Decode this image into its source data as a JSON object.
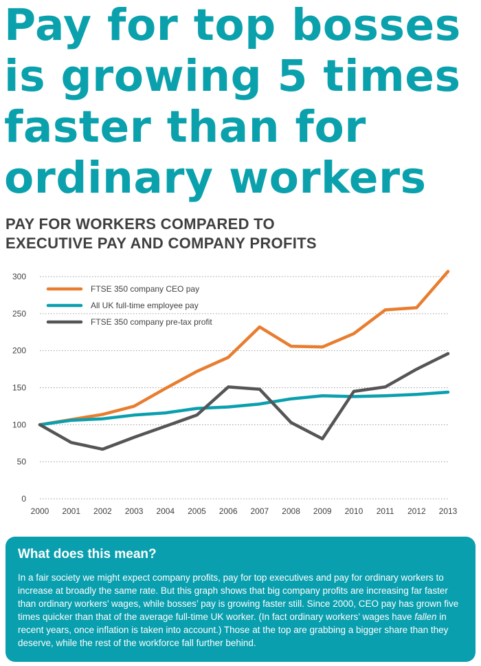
{
  "headline": {
    "lines": [
      "Pay for top bosses",
      "is growing 5 times",
      "faster than for",
      "ordinary workers"
    ]
  },
  "subtitle": {
    "lines": [
      "PAY FOR WORKERS COMPARED TO",
      "EXECUTIVE PAY AND COMPANY PROFITS"
    ]
  },
  "colors": {
    "accent": "#0aa1ad",
    "ceo_pay": "#e87d2f",
    "employee_pay": "#0a9fae",
    "profit": "#555557",
    "grid": "#9a9a9a",
    "text": "#3f3f3f"
  },
  "chart_data": {
    "type": "line",
    "title": "PAY FOR WORKERS COMPARED TO EXECUTIVE PAY AND COMPANY PROFITS",
    "xlabel": "",
    "ylabel": "",
    "x": [
      2000,
      2001,
      2002,
      2003,
      2004,
      2005,
      2006,
      2007,
      2008,
      2009,
      2010,
      2011,
      2012,
      2013
    ],
    "ylim": [
      0,
      300
    ],
    "yticks": [
      0,
      50,
      100,
      150,
      200,
      250,
      300
    ],
    "grid": "horizontal dotted",
    "legend_position": "top-left",
    "series": [
      {
        "name": "FTSE 350 company CEO pay",
        "color": "#e87d2f",
        "values": [
          100,
          107,
          114,
          125,
          149,
          172,
          191,
          232,
          206,
          205,
          223,
          255,
          258,
          307
        ]
      },
      {
        "name": "All UK full-time employee pay",
        "color": "#0a9fae",
        "values": [
          100,
          106,
          108,
          113,
          116,
          122,
          124,
          128,
          135,
          139,
          138,
          139,
          141,
          144
        ]
      },
      {
        "name": "FTSE 350 company pre-tax profit",
        "color": "#555557",
        "values": [
          100,
          76,
          67,
          83,
          98,
          113,
          151,
          148,
          103,
          81,
          145,
          151,
          175,
          196
        ]
      }
    ]
  },
  "infobox": {
    "title": "What does this mean?",
    "body_before": "In a fair society we might expect company profits, pay for top executives and pay for ordinary workers to increase at broadly the same rate. But this graph shows that big company profits are increasing far faster than ordinary workers’ wages, while bosses’ pay is growing faster still. Since 2000, CEO pay has grown five times quicker than that of the average full-time UK worker. (In fact ordinary workers’ wages have ",
    "body_emphasis": "fallen",
    "body_after": " in recent years, once inflation is taken into account.) Those at the top are grabbing a bigger share than they deserve, while the rest of the workforce fall further behind."
  }
}
